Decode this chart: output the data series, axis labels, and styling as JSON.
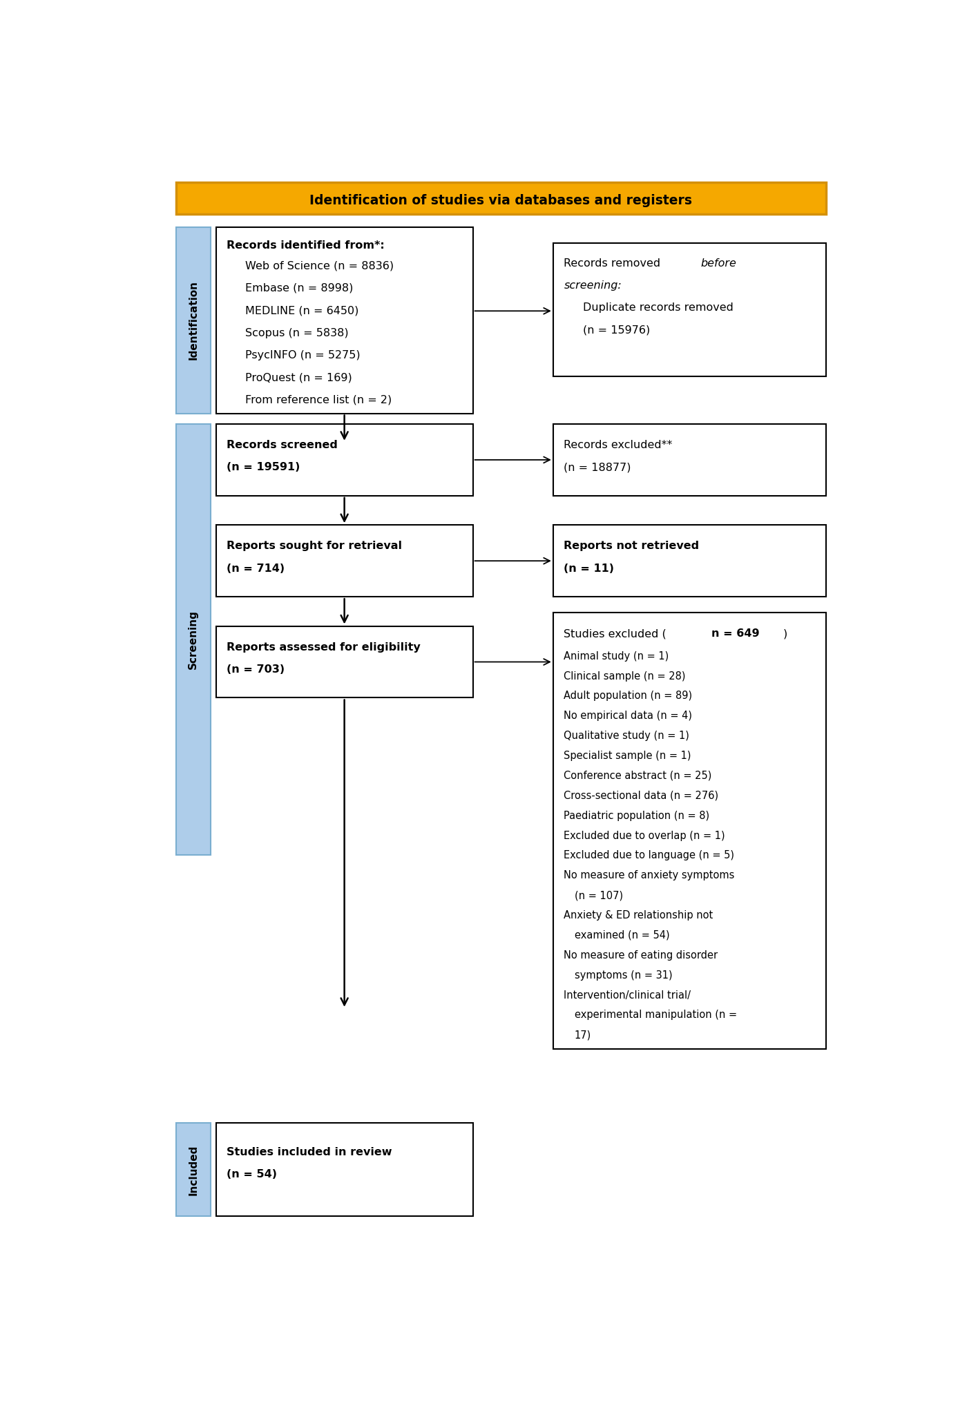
{
  "title": "Identification of studies via databases and registers",
  "title_bg": "#F5A800",
  "title_border": "#D4900A",
  "sidebar_bg": "#AECDEA",
  "sidebar_border": "#7AAED0",
  "box_bg": "#FFFFFF",
  "box_border": "#000000",
  "fig_w": 14.16,
  "fig_h": 20.36,
  "dpi": 100,
  "identification_box": {
    "lines_bold": "Records identified from*:",
    "lines": [
      "Web of Science (n = 8836)",
      "Embase (n = 8998)",
      "MEDLINE (n = 6450)",
      "Scopus (n = 5838)",
      "PsycINFO (n = 5275)",
      "ProQuest (n = 169)",
      "From reference list (n = 2)"
    ]
  },
  "screened": {
    "line1": "Records screened",
    "line2": "(n = 19591)"
  },
  "retrieval": {
    "line1": "Reports sought for retrieval",
    "line2": "(n = 714)"
  },
  "eligibility": {
    "line1": "Reports assessed for eligibility",
    "line2": "(n = 703)"
  },
  "included": {
    "line1": "Studies included in review",
    "line2": "(n = 54)"
  },
  "removed": {
    "line1_normal": "Records removed ",
    "line1_italic": "before",
    "line2_italic": "screening:",
    "line3": "Duplicate records removed",
    "line4": "(n = 15976)"
  },
  "excluded_screen": {
    "line1": "Records excluded**",
    "line2": "(n = 18877)"
  },
  "not_retrieved": {
    "line1": "Reports not retrieved",
    "line2": "(n = 11)"
  },
  "studies_excluded": {
    "header_normal": "Studies excluded (",
    "header_bold": "n = 649",
    "header_end": ")",
    "lines": [
      "Animal study (n = 1)",
      "Clinical sample (n = 28)",
      "Adult population (n = 89)",
      "No empirical data (n = 4)",
      "Qualitative study (n = 1)",
      "Specialist sample (n = 1)",
      "Conference abstract (n = 25)",
      "Cross-sectional data (n = 276)",
      "Paediatric population (n = 8)",
      "Excluded due to overlap (n = 1)",
      "Excluded due to language (n = 5)",
      "No measure of anxiety symptoms",
      "(n = 107)",
      "Anxiety & ED relationship not",
      "examined (n = 54)",
      "No measure of eating disorder",
      "symptoms (n = 31)",
      "Intervention/clinical trial/",
      "experimental manipulation (n =",
      "17)"
    ]
  }
}
